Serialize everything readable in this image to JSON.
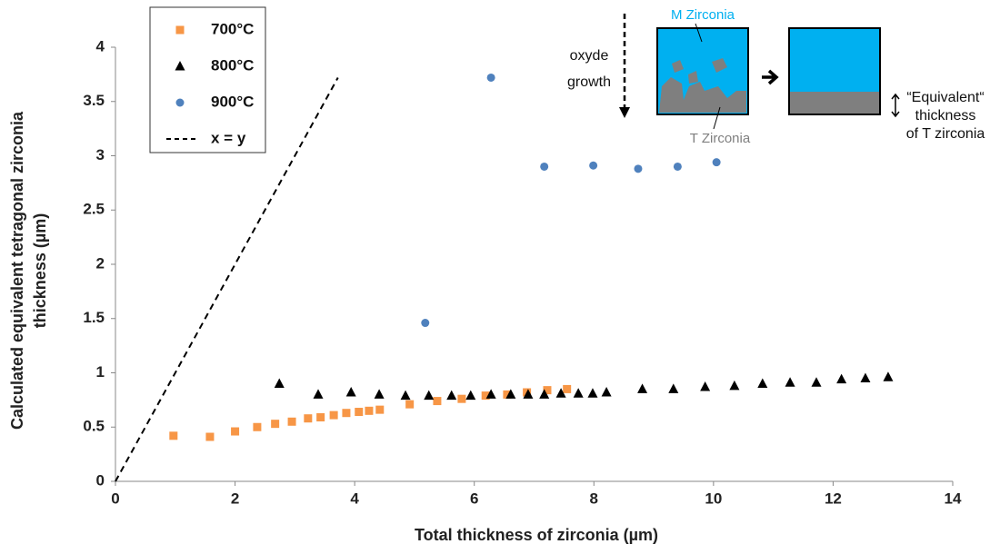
{
  "chart_data": {
    "type": "scatter",
    "x_label": "Total thickness of zirconia (µm)",
    "y_label": [
      "Calculated equivalent tetragonal zirconia",
      "thickness (µm)"
    ],
    "xlim": [
      0,
      14
    ],
    "xticks": [
      0,
      2,
      4,
      6,
      8,
      10,
      12,
      14
    ],
    "ylim": [
      0,
      4
    ],
    "yticks": [
      0,
      0.5,
      1,
      1.5,
      2,
      2.5,
      3,
      3.5,
      4
    ],
    "legend": "top-left",
    "series": [
      {
        "name": "700°C",
        "color": "#f79646",
        "marker": "square",
        "x": [
          0.97,
          1.58,
          2.0,
          2.37,
          2.67,
          2.95,
          3.22,
          3.43,
          3.65,
          3.86,
          4.07,
          4.24,
          4.42,
          4.92,
          5.38,
          5.79,
          6.19,
          6.55,
          6.88,
          7.22,
          7.55
        ],
        "values": [
          0.42,
          0.41,
          0.46,
          0.5,
          0.53,
          0.55,
          0.58,
          0.59,
          0.61,
          0.63,
          0.64,
          0.65,
          0.66,
          0.71,
          0.74,
          0.76,
          0.79,
          0.8,
          0.82,
          0.84,
          0.85
        ]
      },
      {
        "name": "800°C",
        "color": "#000000",
        "marker": "triangle",
        "x": [
          2.74,
          3.39,
          3.94,
          4.41,
          4.85,
          5.24,
          5.62,
          5.94,
          6.28,
          6.61,
          6.9,
          7.17,
          7.45,
          7.74,
          7.98,
          8.21,
          8.81,
          9.33,
          9.86,
          10.35,
          10.82,
          11.28,
          11.72,
          12.14,
          12.54,
          12.92
        ],
        "values": [
          0.9,
          0.8,
          0.82,
          0.8,
          0.79,
          0.79,
          0.79,
          0.79,
          0.8,
          0.8,
          0.8,
          0.8,
          0.81,
          0.81,
          0.81,
          0.82,
          0.85,
          0.85,
          0.87,
          0.88,
          0.9,
          0.91,
          0.91,
          0.94,
          0.95,
          0.96
        ]
      },
      {
        "name": "900°C",
        "color": "#4f81bd",
        "marker": "circle",
        "x": [
          5.18,
          6.28,
          7.17,
          7.99,
          8.74,
          9.4,
          10.05
        ],
        "values": [
          1.46,
          3.72,
          2.9,
          2.91,
          2.88,
          2.9,
          2.94
        ]
      },
      {
        "name": "x = y",
        "color": "#000000",
        "marker": "dashed-line",
        "x": [
          0,
          3.72
        ],
        "values": [
          0,
          3.72
        ]
      }
    ],
    "annotations": {
      "growth_top": "oxyde",
      "growth_bottom": "growth",
      "m_zirconia": "M Zirconia",
      "t_zirconia": "T Zirconia",
      "equivalent": [
        "“Equivalent“",
        "thickness",
        "of T zirconia"
      ]
    }
  }
}
